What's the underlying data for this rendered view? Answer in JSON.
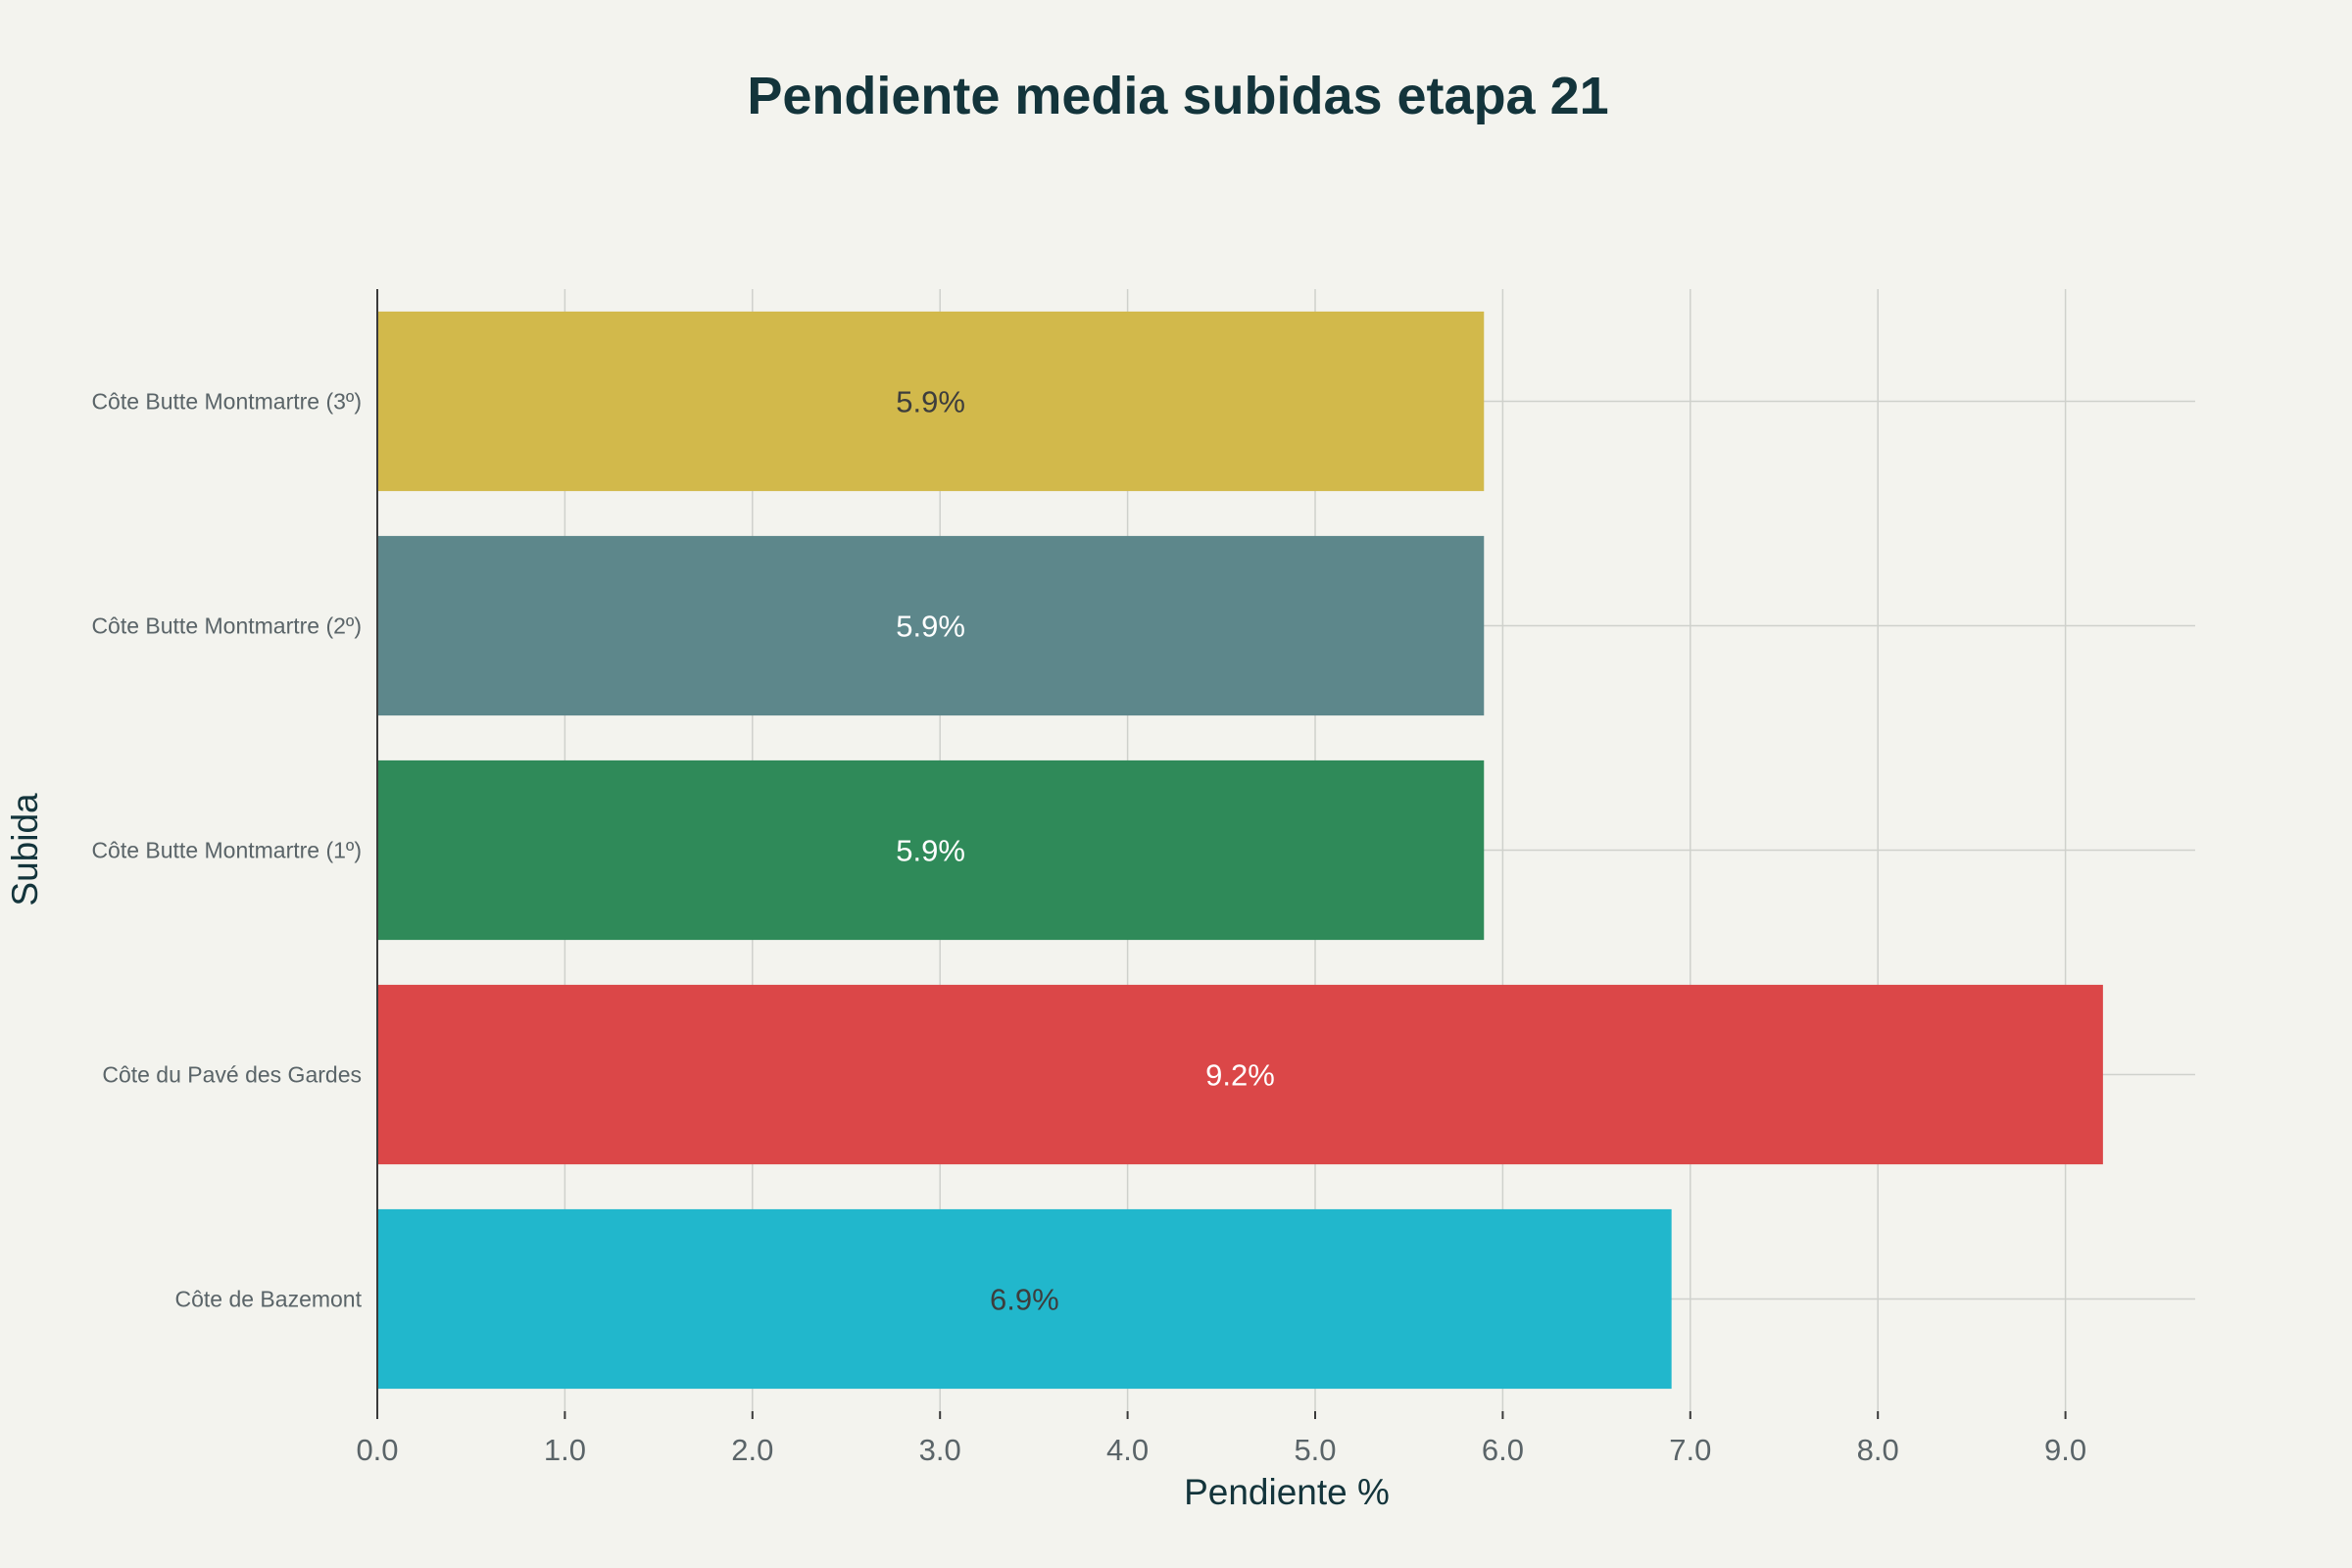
{
  "chart_data": {
    "type": "bar",
    "orientation": "horizontal",
    "title": "Pendiente media subidas etapa 21",
    "xlabel": "Pendiente %",
    "ylabel": "Subida",
    "xlim": [
      0,
      9.7
    ],
    "xticks": [
      "0.0",
      "1.0",
      "2.0",
      "3.0",
      "4.0",
      "5.0",
      "6.0",
      "7.0",
      "8.0",
      "9.0"
    ],
    "grid": true,
    "categories": [
      "Côte Butte Montmartre (3º)",
      "Côte Butte Montmartre (2º)",
      "Côte Butte Montmartre (1º)",
      "Côte du Pavé des Gardes",
      "Côte de Bazemont"
    ],
    "values": [
      5.9,
      5.9,
      5.9,
      9.2,
      6.9
    ],
    "data_labels": [
      "5.9%",
      "5.9%",
      "5.9%",
      "9.2%",
      "6.9%"
    ],
    "colors": [
      "#d2b94b",
      "#5d878b",
      "#2f8a59",
      "#db4748",
      "#21b7cc"
    ],
    "label_colors": [
      "#3d3d3d",
      "#ffffff",
      "#ffffff",
      "#ffffff",
      "#3d3d3d"
    ]
  }
}
